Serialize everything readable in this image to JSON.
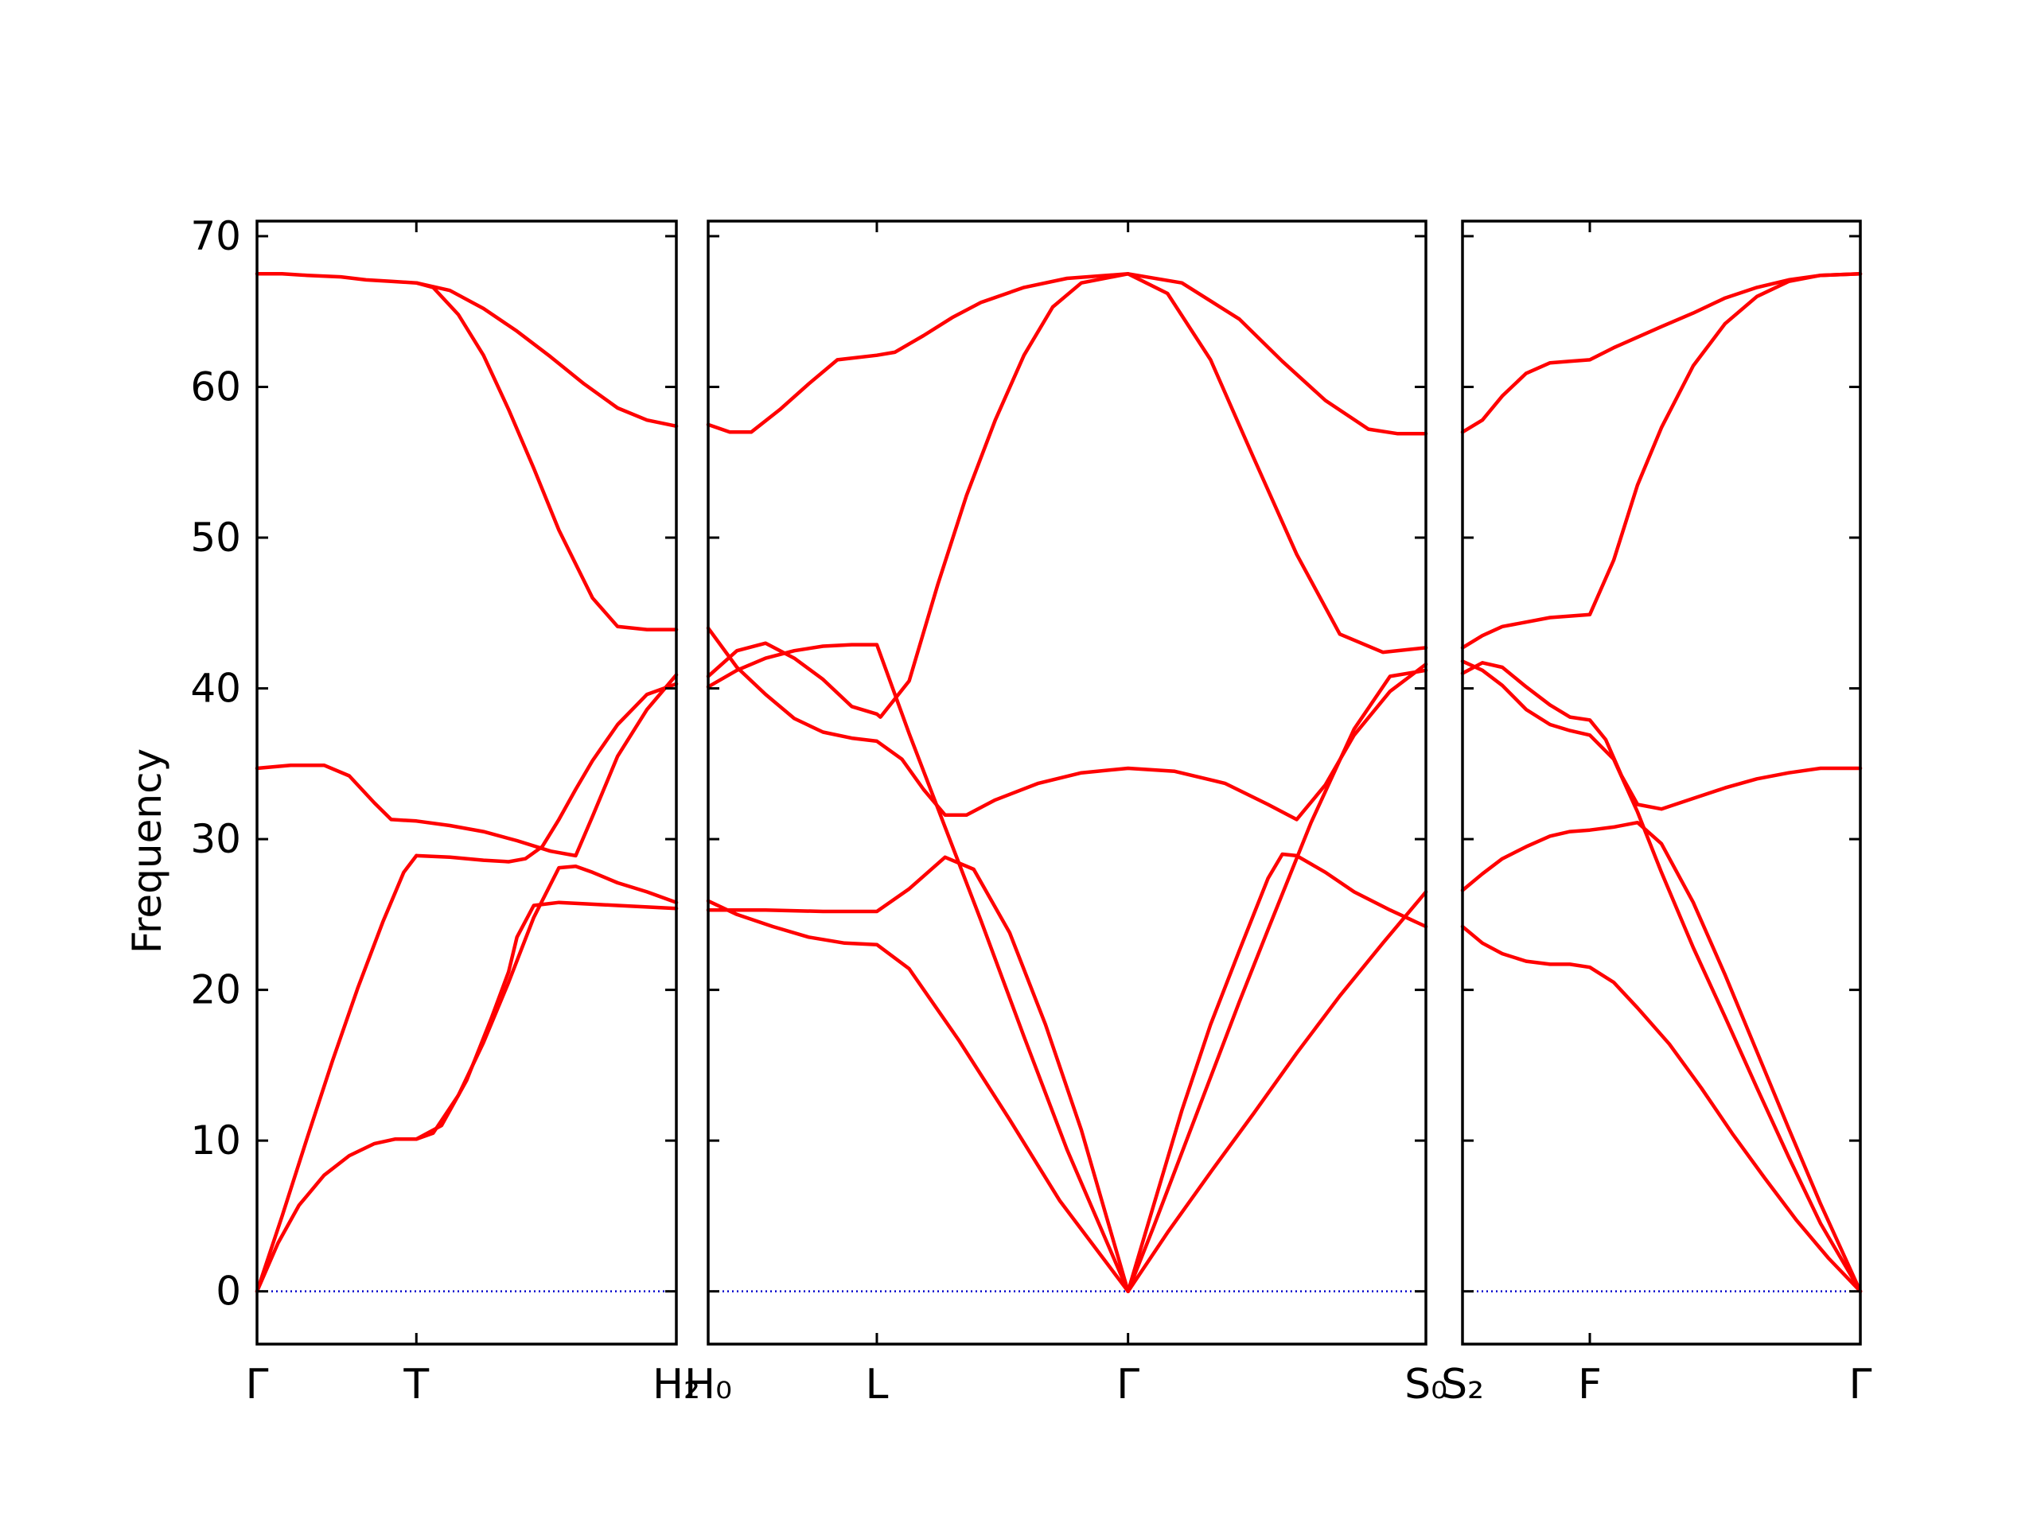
{
  "chart_data": {
    "type": "line",
    "title": "",
    "ylabel": "Frequency",
    "ylim": [
      -3.5,
      71
    ],
    "grid": false,
    "legend": "none",
    "colors": {
      "bands": "#ff0000",
      "zero_line": "#0000cc",
      "axes": "#000000"
    },
    "yticks": [
      0,
      10,
      20,
      30,
      40,
      50,
      60,
      70
    ],
    "panels": [
      {
        "x_range": [
          0,
          1
        ],
        "xtick_positions": [
          0,
          0.38,
          1
        ],
        "xtick_labels": [
          "Γ",
          "T",
          "H₂"
        ],
        "series": [
          {
            "x": [
              0,
              0.05,
              0.1,
              0.16,
              0.22,
              0.28,
              0.33,
              0.38
            ],
            "y": [
              0,
              3.2,
              5.7,
              7.7,
              9.0,
              9.8,
              10.1,
              10.1
            ]
          },
          {
            "x": [
              0,
              0.06,
              0.12,
              0.18,
              0.24,
              0.3,
              0.35,
              0.38
            ],
            "y": [
              0,
              5,
              10.2,
              15.3,
              20.1,
              24.5,
              27.8,
              28.9
            ]
          },
          {
            "x": [
              0.38,
              0.44,
              0.5,
              0.56,
              0.6,
              0.62,
              0.66,
              0.72,
              0.79,
              0.86,
              0.93,
              1.0
            ],
            "y": [
              10.1,
              11,
              14,
              18.2,
              21.2,
              23.5,
              25.6,
              25.8,
              25.7,
              25.6,
              25.5,
              25.4
            ]
          },
          {
            "x": [
              0.38,
              0.42,
              0.48,
              0.54,
              0.6,
              0.66,
              0.72,
              0.76,
              0.8,
              0.86,
              0.93,
              1.0
            ],
            "y": [
              10.1,
              10.5,
              13,
              16.5,
              20.5,
              24.8,
              28.1,
              28.2,
              27.8,
              27.1,
              26.5,
              25.8
            ]
          },
          {
            "x": [
              0.38,
              0.46,
              0.54,
              0.6,
              0.64,
              0.68,
              0.72,
              0.76,
              0.8,
              0.86,
              0.93,
              1.0
            ],
            "y": [
              28.9,
              28.8,
              28.6,
              28.5,
              28.7,
              29.5,
              31.3,
              33.3,
              35.2,
              37.6,
              39.6,
              40.3
            ]
          },
          {
            "x": [
              0,
              0.08,
              0.16,
              0.22,
              0.28,
              0.32,
              0.38,
              0.46,
              0.54,
              0.62,
              0.7,
              0.76,
              0.8,
              0.86,
              0.93,
              1.0
            ],
            "y": [
              34.7,
              34.9,
              34.9,
              34.2,
              32.4,
              31.3,
              31.2,
              30.9,
              30.5,
              29.9,
              29.2,
              28.9,
              31.5,
              35.5,
              38.6,
              40.9
            ]
          },
          {
            "x": [
              0,
              0.06,
              0.12,
              0.2,
              0.26,
              0.32,
              0.38,
              0.42,
              0.48,
              0.54,
              0.6,
              0.66,
              0.72,
              0.8,
              0.86,
              0.93,
              1.0
            ],
            "y": [
              67.5,
              67.5,
              67.4,
              67.3,
              67.1,
              67.0,
              66.9,
              66.6,
              64.8,
              62.1,
              58.5,
              54.6,
              50.5,
              46.0,
              44.1,
              43.9,
              43.9
            ]
          },
          {
            "x": [
              0.38,
              0.46,
              0.54,
              0.62,
              0.7,
              0.78,
              0.86,
              0.93,
              1.0
            ],
            "y": [
              66.9,
              66.4,
              65.2,
              63.7,
              62.0,
              60.2,
              58.6,
              57.8,
              57.4
            ]
          }
        ]
      },
      {
        "x_range": [
          0,
          1
        ],
        "xtick_positions": [
          0,
          0.235,
          0.585,
          1
        ],
        "xtick_labels": [
          "H₀",
          "L",
          "Γ",
          "S₀"
        ],
        "series": [
          {
            "x": [
              0,
              0.04,
              0.09,
              0.14,
              0.19,
              0.235,
              0.28,
              0.35,
              0.42,
              0.49,
              0.585
            ],
            "y": [
              25.9,
              25.0,
              24.2,
              23.5,
              23.1,
              23.0,
              21.4,
              16.6,
              11.4,
              6.0,
              0
            ]
          },
          {
            "x": [
              0,
              0.08,
              0.16,
              0.235,
              0.28,
              0.33,
              0.37,
              0.42,
              0.47,
              0.52,
              0.585
            ],
            "y": [
              25.3,
              25.3,
              25.2,
              25.2,
              26.7,
              28.8,
              28.0,
              23.8,
              17.7,
              10.7,
              0
            ]
          },
          {
            "x": [
              0,
              0.04,
              0.08,
              0.12,
              0.16,
              0.2,
              0.235,
              0.28,
              0.33,
              0.38,
              0.44,
              0.5,
              0.585
            ],
            "y": [
              40.1,
              41.2,
              42.0,
              42.5,
              42.8,
              42.9,
              42.9,
              37.0,
              30.8,
              24.6,
              16.9,
              9.4,
              0
            ]
          },
          {
            "x": [
              0,
              0.04,
              0.08,
              0.12,
              0.16,
              0.2,
              0.235,
              0.27,
              0.3,
              0.33,
              0.36,
              0.4,
              0.46,
              0.52,
              0.585,
              0.65,
              0.72,
              0.78,
              0.82,
              0.86,
              0.9,
              0.95,
              1.0
            ],
            "y": [
              44.0,
              41.4,
              39.6,
              38.0,
              37.1,
              36.7,
              36.5,
              35.3,
              33.3,
              31.6,
              31.6,
              32.6,
              33.7,
              34.4,
              34.7,
              34.5,
              33.7,
              32.3,
              31.3,
              33.6,
              36.9,
              39.8,
              41.6
            ]
          },
          {
            "x": [
              0,
              0.03,
              0.06,
              0.1,
              0.14,
              0.18,
              0.235,
              0.26,
              0.3,
              0.34,
              0.38,
              0.44,
              0.5,
              0.585,
              0.66,
              0.74,
              0.8,
              0.86,
              0.92,
              0.96,
              1.0
            ],
            "y": [
              57.5,
              57.0,
              57.0,
              58.5,
              60.2,
              61.8,
              62.1,
              62.3,
              63.4,
              64.6,
              65.6,
              66.6,
              67.2,
              67.5,
              66.9,
              64.5,
              61.7,
              59.1,
              57.2,
              56.9,
              56.9
            ]
          },
          {
            "x": [
              0,
              0.04,
              0.08,
              0.12,
              0.16,
              0.2,
              0.235,
              0.24,
              0.28,
              0.32,
              0.36,
              0.4,
              0.44,
              0.48,
              0.52,
              0.585,
              0.64,
              0.7,
              0.76,
              0.82,
              0.88,
              0.94,
              1.0
            ],
            "y": [
              40.8,
              42.5,
              43.0,
              42.0,
              40.6,
              38.8,
              38.3,
              38.1,
              40.5,
              46.9,
              52.8,
              57.8,
              62.1,
              65.3,
              66.9,
              67.5,
              66.2,
              61.8,
              55.3,
              48.9,
              43.6,
              42.4,
              42.7
            ]
          },
          {
            "x": [
              0.585,
              0.62,
              0.66,
              0.7,
              0.74,
              0.78,
              0.84,
              0.9,
              0.95,
              1.0
            ],
            "y": [
              0,
              4.2,
              9.2,
              14.2,
              19.2,
              24.0,
              31.1,
              37.3,
              40.8,
              41.2
            ]
          },
          {
            "x": [
              0.585,
              0.62,
              0.66,
              0.7,
              0.74,
              0.78,
              0.8,
              0.82,
              0.86,
              0.9,
              0.95,
              1.0
            ],
            "y": [
              0,
              5.6,
              12.0,
              17.7,
              22.6,
              27.4,
              29.0,
              28.9,
              27.8,
              26.5,
              25.3,
              24.2
            ]
          },
          {
            "x": [
              0.585,
              0.64,
              0.7,
              0.76,
              0.82,
              0.88,
              0.94,
              1.0
            ],
            "y": [
              0,
              3.9,
              7.9,
              11.8,
              15.8,
              19.6,
              23.1,
              26.5
            ]
          }
        ]
      },
      {
        "x_range": [
          0,
          1
        ],
        "xtick_positions": [
          0,
          0.32,
          1
        ],
        "xtick_labels": [
          "S₂",
          "F",
          "Γ"
        ],
        "series": [
          {
            "x": [
              0,
              0.05,
              0.1,
              0.16,
              0.22,
              0.27,
              0.32,
              0.38,
              0.44,
              0.52,
              0.6,
              0.68,
              0.76,
              0.84,
              0.92,
              1.0
            ],
            "y": [
              24.2,
              23.1,
              22.4,
              21.9,
              21.7,
              21.7,
              21.5,
              20.5,
              18.8,
              16.4,
              13.5,
              10.4,
              7.5,
              4.7,
              2.2,
              0
            ]
          },
          {
            "x": [
              0,
              0.05,
              0.1,
              0.16,
              0.22,
              0.27,
              0.32,
              0.38,
              0.44,
              0.5,
              0.58,
              0.66,
              0.74,
              0.82,
              0.9,
              1.0
            ],
            "y": [
              26.6,
              27.7,
              28.7,
              29.5,
              30.2,
              30.5,
              30.6,
              30.8,
              31.1,
              29.7,
              25.8,
              21.0,
              15.9,
              10.8,
              5.8,
              0
            ]
          },
          {
            "x": [
              0,
              0.05,
              0.1,
              0.16,
              0.22,
              0.27,
              0.32,
              0.38,
              0.44,
              0.5,
              0.58,
              0.66,
              0.74,
              0.82,
              0.9,
              1.0
            ],
            "y": [
              41.8,
              41.2,
              40.2,
              38.6,
              37.6,
              37.2,
              36.9,
              35.3,
              31.8,
              27.8,
              22.8,
              18.2,
              13.5,
              8.9,
              4.5,
              0
            ]
          },
          {
            "x": [
              0,
              0.05,
              0.1,
              0.16,
              0.22,
              0.27,
              0.32,
              0.36,
              0.4,
              0.44,
              0.5,
              0.58,
              0.66,
              0.74,
              0.82,
              0.9,
              1.0
            ],
            "y": [
              41.0,
              41.7,
              41.4,
              40.1,
              38.9,
              38.1,
              37.9,
              36.6,
              34.2,
              32.3,
              32.0,
              32.7,
              33.4,
              34.0,
              34.4,
              34.7,
              34.7
            ]
          },
          {
            "x": [
              0,
              0.05,
              0.1,
              0.16,
              0.22,
              0.27,
              0.32,
              0.38,
              0.44,
              0.5,
              0.58,
              0.66,
              0.74,
              0.82,
              0.9,
              1.0
            ],
            "y": [
              42.7,
              43.5,
              44.1,
              44.4,
              44.7,
              44.8,
              44.9,
              48.5,
              53.5,
              57.3,
              61.4,
              64.2,
              66.0,
              67.0,
              67.4,
              67.5
            ]
          },
          {
            "x": [
              0,
              0.05,
              0.1,
              0.16,
              0.22,
              0.27,
              0.32,
              0.38,
              0.44,
              0.5,
              0.58,
              0.66,
              0.74,
              0.82,
              0.9,
              1.0
            ],
            "y": [
              57.0,
              57.8,
              59.4,
              60.9,
              61.6,
              61.7,
              61.8,
              62.6,
              63.3,
              64.0,
              64.9,
              65.9,
              66.6,
              67.1,
              67.4,
              67.5
            ]
          }
        ]
      }
    ]
  }
}
